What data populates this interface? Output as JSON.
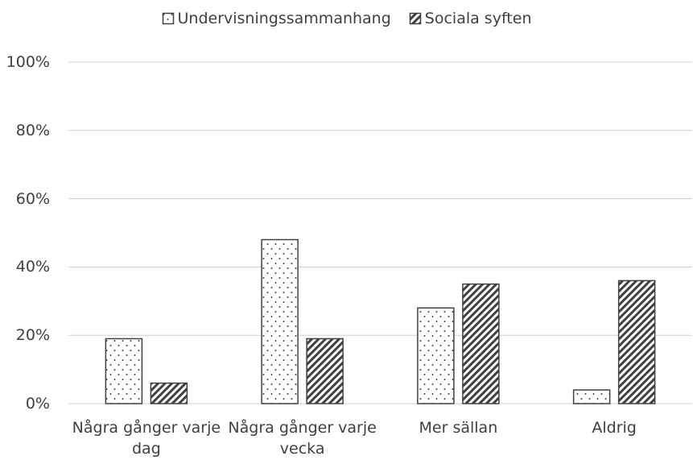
{
  "chart_data": {
    "type": "bar",
    "categories": [
      "Några gånger varje dag",
      "Några gånger varje vecka",
      "Mer sällan",
      "Aldrig"
    ],
    "series": [
      {
        "name": "Undervisningssammanhang",
        "color": "#404040",
        "pattern": "dots",
        "values": [
          19,
          48,
          28,
          4
        ]
      },
      {
        "name": "Sociala syften",
        "color": "#404040",
        "pattern": "hatch",
        "values": [
          6,
          19,
          35,
          36
        ]
      }
    ],
    "ylim": [
      0,
      100
    ],
    "yticks": [
      {
        "value": 0,
        "label": "0%"
      },
      {
        "value": 20,
        "label": "20%"
      },
      {
        "value": 40,
        "label": "40%"
      },
      {
        "value": 60,
        "label": "60%"
      },
      {
        "value": 80,
        "label": "80%"
      },
      {
        "value": 100,
        "label": "100%"
      }
    ],
    "grid": true,
    "legend": "top"
  }
}
